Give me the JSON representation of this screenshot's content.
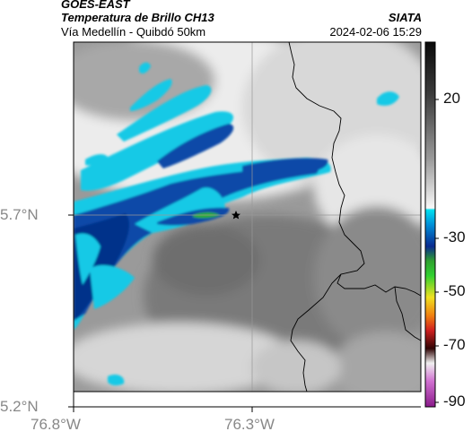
{
  "header": {
    "satellite": "GOES-EAST",
    "product": "Temperatura de Brillo CH13",
    "route": "Vía Medellín - Quibdó 50km",
    "agency": "SIATA",
    "timestamp": "2024-02-06 15:29"
  },
  "axes": {
    "lat_ticks": [
      {
        "value": 5.7,
        "label": "5.7°N"
      },
      {
        "value": 5.2,
        "label": "5.2°N"
      }
    ],
    "lon_ticks": [
      {
        "value": -76.8,
        "label": "76.8°W"
      },
      {
        "value": -76.3,
        "label": "76.3°W"
      }
    ],
    "grid": true
  },
  "colorbar": {
    "ticks": [
      {
        "value": 20,
        "label": "20"
      },
      {
        "value": -30,
        "label": "-30"
      },
      {
        "value": -50,
        "label": "-50"
      },
      {
        "value": -70,
        "label": "-70"
      },
      {
        "value": -90,
        "label": "-90"
      }
    ],
    "colors": {
      "warm_top": "#1a1a1a",
      "warm_mid": "#8a8a8a",
      "cold_cyan": "#00c8e0",
      "cold_blue": "#0a3a9a",
      "green": "#2fae2f",
      "yellow": "#f0e020",
      "orange": "#e06010",
      "red": "#c01010",
      "dark_red": "#400808",
      "magenta": "#c040c0"
    }
  },
  "map": {
    "marker": "star-icon",
    "colors": {
      "cloud_white": "#f2f2f2",
      "cloud_gray": "#8c8c8c",
      "cyan": "#12c9e6",
      "blue": "#0a4aa8",
      "dark_blue": "#06328a",
      "border": "#000000"
    }
  }
}
